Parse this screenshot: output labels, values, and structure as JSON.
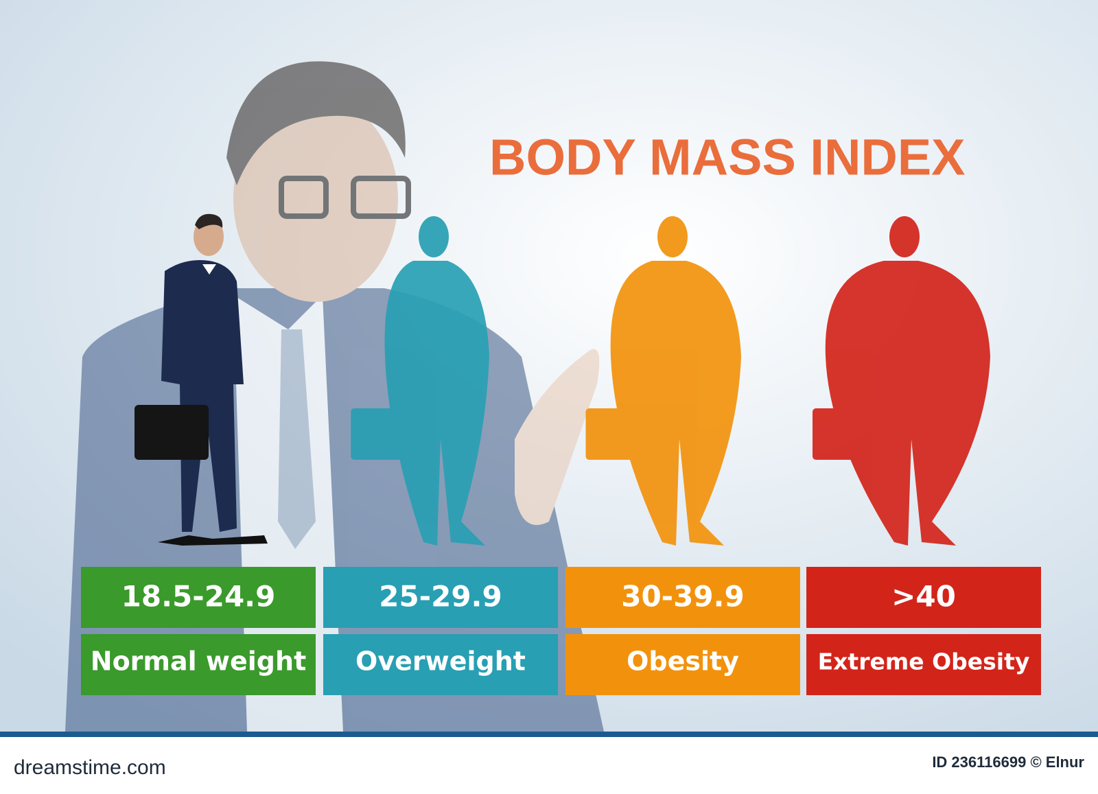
{
  "header": {
    "title": "BODY MASS INDEX"
  },
  "categories": [
    {
      "range": "18.5-24.9",
      "label": "Normal weight",
      "color": "#3a9a2b"
    },
    {
      "range": "25-29.9",
      "label": "Overweight",
      "color": "#289fb3"
    },
    {
      "range": "30-39.9",
      "label": "Obesity",
      "color": "#f2920c"
    },
    {
      "range": ">40",
      "label": "Extreme Obesity",
      "color": "#d3241a"
    }
  ],
  "footer": {
    "site": "dreamstime.com",
    "id": "ID 236116699 © Elnur"
  }
}
